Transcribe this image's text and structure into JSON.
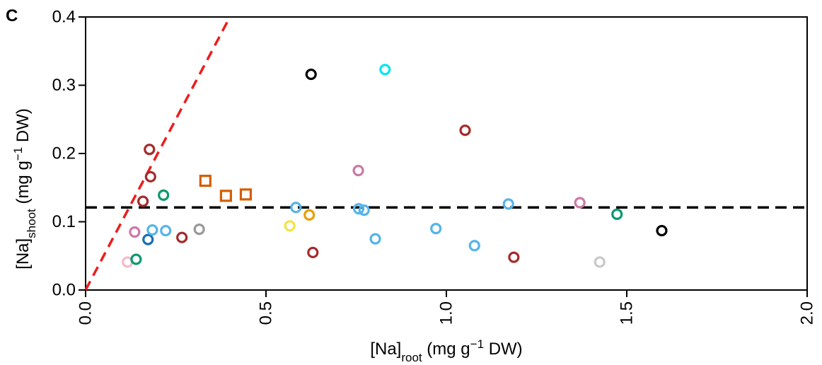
{
  "chart_data": {
    "type": "scatter",
    "panel_label": "C",
    "xlabel": {
      "base": "[Na]",
      "sub": "root",
      "unit_pre": " (mg g",
      "sup": "−1",
      "unit_post": " DW)"
    },
    "ylabel": {
      "base": "[Na]",
      "sub": "shoot",
      "unit_pre": " (mg g",
      "sup": "−1",
      "unit_post": " DW)"
    },
    "xlim": [
      0,
      2.0
    ],
    "ylim": [
      0,
      0.4
    ],
    "xticks": [
      0,
      0.5,
      1.0,
      1.5,
      2.0
    ],
    "xtick_labels": [
      "0.0",
      "0.5",
      "1.0",
      "1.5",
      "2.0"
    ],
    "yticks": [
      0,
      0.1,
      0.2,
      0.3,
      0.4
    ],
    "ytick_labels": [
      "0.0",
      "0.1",
      "0.2",
      "0.3",
      "0.4"
    ],
    "grid": false,
    "reference_lines": [
      {
        "kind": "diagonal",
        "color": "#ee1c1c",
        "points": [
          [
            0,
            0
          ],
          [
            0.4,
            0.4
          ]
        ],
        "dash": true
      },
      {
        "kind": "horizontal",
        "color": "#000000",
        "y": 0.121,
        "dash": true
      }
    ],
    "points": [
      {
        "x": 0.116,
        "y": 0.041,
        "color": "#f7b8c8",
        "marker": "circle"
      },
      {
        "x": 0.14,
        "y": 0.045,
        "color": "#0a9a6e",
        "marker": "circle"
      },
      {
        "x": 0.136,
        "y": 0.085,
        "color": "#cc79a7",
        "marker": "circle"
      },
      {
        "x": 0.159,
        "y": 0.13,
        "color": "#a52a2a",
        "marker": "circle"
      },
      {
        "x": 0.173,
        "y": 0.074,
        "color": "#1b6fb0",
        "marker": "circle"
      },
      {
        "x": 0.177,
        "y": 0.206,
        "color": "#a52a2a",
        "marker": "circle"
      },
      {
        "x": 0.18,
        "y": 0.166,
        "color": "#a52a2a",
        "marker": "circle"
      },
      {
        "x": 0.185,
        "y": 0.088,
        "color": "#56b4e9",
        "marker": "circle"
      },
      {
        "x": 0.216,
        "y": 0.139,
        "color": "#0a9a6e",
        "marker": "circle"
      },
      {
        "x": 0.222,
        "y": 0.087,
        "color": "#56b4e9",
        "marker": "circle"
      },
      {
        "x": 0.267,
        "y": 0.077,
        "color": "#a52a2a",
        "marker": "circle"
      },
      {
        "x": 0.315,
        "y": 0.089,
        "color": "#999999",
        "marker": "circle"
      },
      {
        "x": 0.332,
        "y": 0.16,
        "color": "#d55e00",
        "marker": "square"
      },
      {
        "x": 0.389,
        "y": 0.138,
        "color": "#d55e00",
        "marker": "square"
      },
      {
        "x": 0.444,
        "y": 0.14,
        "color": "#d55e00",
        "marker": "square"
      },
      {
        "x": 0.566,
        "y": 0.094,
        "color": "#f0e442",
        "marker": "circle"
      },
      {
        "x": 0.583,
        "y": 0.121,
        "color": "#56b4e9",
        "marker": "circle"
      },
      {
        "x": 0.62,
        "y": 0.11,
        "color": "#e69f00",
        "marker": "circle"
      },
      {
        "x": 0.625,
        "y": 0.316,
        "color": "#000000",
        "marker": "circle"
      },
      {
        "x": 0.63,
        "y": 0.055,
        "color": "#a52a2a",
        "marker": "circle"
      },
      {
        "x": 0.756,
        "y": 0.175,
        "color": "#cc79a7",
        "marker": "circle"
      },
      {
        "x": 0.757,
        "y": 0.119,
        "color": "#56b4e9",
        "marker": "circle"
      },
      {
        "x": 0.772,
        "y": 0.117,
        "color": "#56b4e9",
        "marker": "circle"
      },
      {
        "x": 0.803,
        "y": 0.075,
        "color": "#56b4e9",
        "marker": "circle"
      },
      {
        "x": 0.83,
        "y": 0.323,
        "color": "#00e5ee",
        "marker": "circle"
      },
      {
        "x": 0.971,
        "y": 0.09,
        "color": "#56b4e9",
        "marker": "circle"
      },
      {
        "x": 1.052,
        "y": 0.234,
        "color": "#a52a2a",
        "marker": "circle"
      },
      {
        "x": 1.078,
        "y": 0.065,
        "color": "#56b4e9",
        "marker": "circle"
      },
      {
        "x": 1.172,
        "y": 0.126,
        "color": "#56b4e9",
        "marker": "circle"
      },
      {
        "x": 1.187,
        "y": 0.048,
        "color": "#a52a2a",
        "marker": "circle"
      },
      {
        "x": 1.37,
        "y": 0.128,
        "color": "#cc79a7",
        "marker": "circle"
      },
      {
        "x": 1.425,
        "y": 0.041,
        "color": "#c8c8c8",
        "marker": "circle"
      },
      {
        "x": 1.473,
        "y": 0.111,
        "color": "#0a9a6e",
        "marker": "circle"
      },
      {
        "x": 1.597,
        "y": 0.087,
        "color": "#000000",
        "marker": "circle"
      }
    ]
  }
}
